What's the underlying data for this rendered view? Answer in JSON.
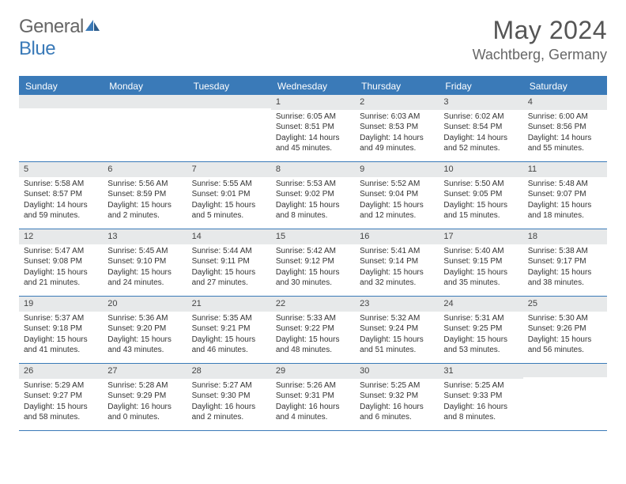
{
  "brand": {
    "part1": "General",
    "part2": "Blue"
  },
  "title": "May 2024",
  "location": "Wachtberg, Germany",
  "colors": {
    "accent": "#3a7ab8",
    "daynum_bg": "#e7e9ea",
    "text": "#333333",
    "header_text": "#555555"
  },
  "weekdays": [
    "Sunday",
    "Monday",
    "Tuesday",
    "Wednesday",
    "Thursday",
    "Friday",
    "Saturday"
  ],
  "weeks": [
    [
      null,
      null,
      null,
      {
        "n": "1",
        "sr": "6:05 AM",
        "ss": "8:51 PM",
        "dl": "14 hours and 45 minutes."
      },
      {
        "n": "2",
        "sr": "6:03 AM",
        "ss": "8:53 PM",
        "dl": "14 hours and 49 minutes."
      },
      {
        "n": "3",
        "sr": "6:02 AM",
        "ss": "8:54 PM",
        "dl": "14 hours and 52 minutes."
      },
      {
        "n": "4",
        "sr": "6:00 AM",
        "ss": "8:56 PM",
        "dl": "14 hours and 55 minutes."
      }
    ],
    [
      {
        "n": "5",
        "sr": "5:58 AM",
        "ss": "8:57 PM",
        "dl": "14 hours and 59 minutes."
      },
      {
        "n": "6",
        "sr": "5:56 AM",
        "ss": "8:59 PM",
        "dl": "15 hours and 2 minutes."
      },
      {
        "n": "7",
        "sr": "5:55 AM",
        "ss": "9:01 PM",
        "dl": "15 hours and 5 minutes."
      },
      {
        "n": "8",
        "sr": "5:53 AM",
        "ss": "9:02 PM",
        "dl": "15 hours and 8 minutes."
      },
      {
        "n": "9",
        "sr": "5:52 AM",
        "ss": "9:04 PM",
        "dl": "15 hours and 12 minutes."
      },
      {
        "n": "10",
        "sr": "5:50 AM",
        "ss": "9:05 PM",
        "dl": "15 hours and 15 minutes."
      },
      {
        "n": "11",
        "sr": "5:48 AM",
        "ss": "9:07 PM",
        "dl": "15 hours and 18 minutes."
      }
    ],
    [
      {
        "n": "12",
        "sr": "5:47 AM",
        "ss": "9:08 PM",
        "dl": "15 hours and 21 minutes."
      },
      {
        "n": "13",
        "sr": "5:45 AM",
        "ss": "9:10 PM",
        "dl": "15 hours and 24 minutes."
      },
      {
        "n": "14",
        "sr": "5:44 AM",
        "ss": "9:11 PM",
        "dl": "15 hours and 27 minutes."
      },
      {
        "n": "15",
        "sr": "5:42 AM",
        "ss": "9:12 PM",
        "dl": "15 hours and 30 minutes."
      },
      {
        "n": "16",
        "sr": "5:41 AM",
        "ss": "9:14 PM",
        "dl": "15 hours and 32 minutes."
      },
      {
        "n": "17",
        "sr": "5:40 AM",
        "ss": "9:15 PM",
        "dl": "15 hours and 35 minutes."
      },
      {
        "n": "18",
        "sr": "5:38 AM",
        "ss": "9:17 PM",
        "dl": "15 hours and 38 minutes."
      }
    ],
    [
      {
        "n": "19",
        "sr": "5:37 AM",
        "ss": "9:18 PM",
        "dl": "15 hours and 41 minutes."
      },
      {
        "n": "20",
        "sr": "5:36 AM",
        "ss": "9:20 PM",
        "dl": "15 hours and 43 minutes."
      },
      {
        "n": "21",
        "sr": "5:35 AM",
        "ss": "9:21 PM",
        "dl": "15 hours and 46 minutes."
      },
      {
        "n": "22",
        "sr": "5:33 AM",
        "ss": "9:22 PM",
        "dl": "15 hours and 48 minutes."
      },
      {
        "n": "23",
        "sr": "5:32 AM",
        "ss": "9:24 PM",
        "dl": "15 hours and 51 minutes."
      },
      {
        "n": "24",
        "sr": "5:31 AM",
        "ss": "9:25 PM",
        "dl": "15 hours and 53 minutes."
      },
      {
        "n": "25",
        "sr": "5:30 AM",
        "ss": "9:26 PM",
        "dl": "15 hours and 56 minutes."
      }
    ],
    [
      {
        "n": "26",
        "sr": "5:29 AM",
        "ss": "9:27 PM",
        "dl": "15 hours and 58 minutes."
      },
      {
        "n": "27",
        "sr": "5:28 AM",
        "ss": "9:29 PM",
        "dl": "16 hours and 0 minutes."
      },
      {
        "n": "28",
        "sr": "5:27 AM",
        "ss": "9:30 PM",
        "dl": "16 hours and 2 minutes."
      },
      {
        "n": "29",
        "sr": "5:26 AM",
        "ss": "9:31 PM",
        "dl": "16 hours and 4 minutes."
      },
      {
        "n": "30",
        "sr": "5:25 AM",
        "ss": "9:32 PM",
        "dl": "16 hours and 6 minutes."
      },
      {
        "n": "31",
        "sr": "5:25 AM",
        "ss": "9:33 PM",
        "dl": "16 hours and 8 minutes."
      },
      null
    ]
  ],
  "labels": {
    "sunrise": "Sunrise:",
    "sunset": "Sunset:",
    "daylight": "Daylight:"
  }
}
